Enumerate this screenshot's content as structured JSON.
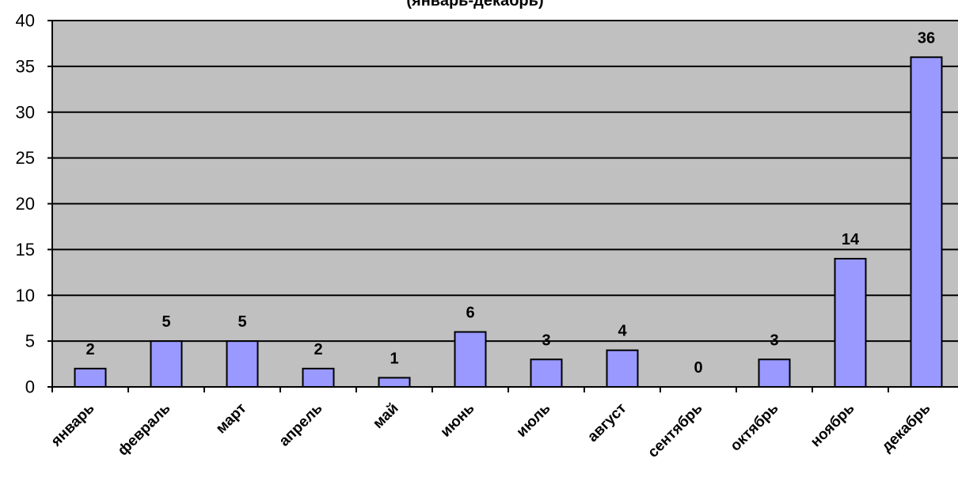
{
  "chart_data": {
    "type": "bar",
    "title": "(январь-декабрь)",
    "categories": [
      "январь",
      "февраль",
      "март",
      "апрель",
      "май",
      "июнь",
      "июль",
      "август",
      "сентябрь",
      "октябрь",
      "ноябрь",
      "декабрь"
    ],
    "values": [
      2,
      5,
      5,
      2,
      1,
      6,
      3,
      4,
      0,
      3,
      14,
      36
    ],
    "ylim": [
      0,
      40
    ],
    "yticks": [
      "0",
      "5",
      "10",
      "15",
      "20",
      "25",
      "30",
      "35",
      "40"
    ],
    "grid": true,
    "data_labels": true,
    "colors": {
      "plot_background": "#c0c0c0",
      "bar_fill": "#9999ff",
      "bar_stroke": "#000000",
      "gridline": "#000000"
    }
  }
}
